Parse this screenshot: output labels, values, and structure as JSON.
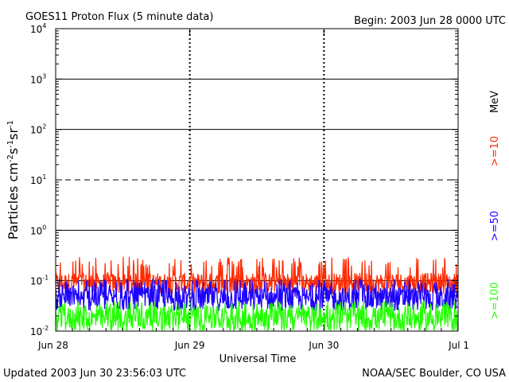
{
  "header": {
    "title": "GOES11 Proton Flux (5 minute data)",
    "begin": "Begin: 2003 Jun 28 0000 UTC"
  },
  "footer": {
    "updated": "Updated 2003 Jun 30 23:56:03 UTC",
    "source": "NOAA/SEC Boulder, CO USA"
  },
  "colors": {
    "background": "#ffffff",
    "axes": "#000000",
    "ge10": "#ff2a00",
    "ge50": "#1b00ff",
    "ge100": "#22ff00"
  },
  "chart_data": {
    "type": "line",
    "title": "GOES11 Proton Flux (5 minute data)",
    "xlabel": "Universal Time",
    "ylabel": "Particles cm-2 s-1 sr-1",
    "ylabel_parts": {
      "base": "Particles cm",
      "e1": "-2",
      "s": "s",
      "e2": "-1",
      "sr": "sr",
      "e3": "-1"
    },
    "yscale": "log",
    "ylim": [
      0.01,
      10000
    ],
    "xlim_days": [
      0,
      3
    ],
    "yticks": [
      {
        "base": "10",
        "exp": "-2",
        "value": 0.01
      },
      {
        "base": "10",
        "exp": "-1",
        "value": 0.1
      },
      {
        "base": "10",
        "exp": "0",
        "value": 1
      },
      {
        "base": "10",
        "exp": "1",
        "value": 10
      },
      {
        "base": "10",
        "exp": "2",
        "value": 100
      },
      {
        "base": "10",
        "exp": "3",
        "value": 1000
      },
      {
        "base": "10",
        "exp": "4",
        "value": 10000
      }
    ],
    "xticks": [
      {
        "label": "Jun 28",
        "day": 0
      },
      {
        "label": "Jun 29",
        "day": 1
      },
      {
        "label": "Jun 30",
        "day": 2
      },
      {
        "label": "Jul 1",
        "day": 3
      }
    ],
    "reference_lines": [
      {
        "y": 1000,
        "style": "solid"
      },
      {
        "y": 100,
        "style": "solid"
      },
      {
        "y": 10,
        "style": "dashed"
      },
      {
        "y": 1,
        "style": "solid"
      },
      {
        "y": 0.1,
        "style": "solid"
      }
    ],
    "unit_label": "MeV",
    "series": [
      {
        "name": ">=10",
        "color": "#ff2a00",
        "baseline": 0.1,
        "low": 0.055,
        "high": 0.3
      },
      {
        "name": ">=50",
        "color": "#1b00ff",
        "baseline": 0.05,
        "low": 0.025,
        "high": 0.11
      },
      {
        "name": ">=100",
        "color": "#22ff00",
        "baseline": 0.02,
        "low": 0.01,
        "high": 0.04
      }
    ]
  }
}
